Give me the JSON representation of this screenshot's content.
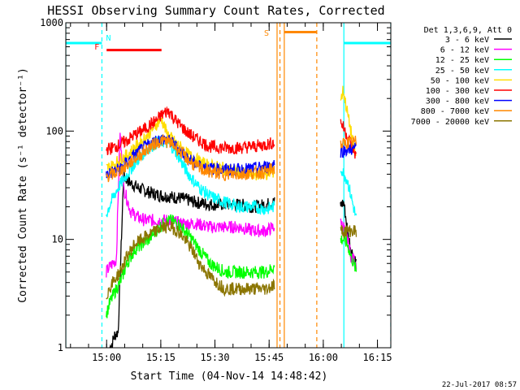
{
  "chart_data": {
    "type": "line",
    "title": "HESSI Observing Summary Count Rates, Corrected",
    "xlabel": "Start Time (04-Nov-14 14:48:42)",
    "ylabel": "Corrected Count Rate (s⁻¹ detector⁻¹)",
    "x_unit": "minutes after 14:48:42",
    "xlim": [
      0,
      90
    ],
    "ylim": [
      1,
      1000
    ],
    "y_scale": "log",
    "grid": false,
    "legend_position": "top-right",
    "legend_title": "Det 1,3,6,9, Att 0",
    "x_ticks": [
      {
        "value": 11.3,
        "label": "15:00"
      },
      {
        "value": 26.3,
        "label": "15:15"
      },
      {
        "value": 41.3,
        "label": "15:30"
      },
      {
        "value": 56.3,
        "label": "15:45"
      },
      {
        "value": 71.3,
        "label": "16:00"
      },
      {
        "value": 86.3,
        "label": "16:15"
      }
    ],
    "y_ticks": [
      {
        "value": 1,
        "label": "1"
      },
      {
        "value": 10,
        "label": "10"
      },
      {
        "value": 100,
        "label": "100"
      },
      {
        "value": 1000,
        "label": "1000"
      }
    ],
    "series": [
      {
        "name": "3 - 6 keV",
        "color": "#000000",
        "x": [
          12.2,
          12.8,
          13.5,
          14.5,
          16,
          18,
          20,
          22,
          25,
          28,
          32,
          36,
          40,
          44,
          48,
          52,
          55.5,
          57.5,
          76.3,
          77,
          78,
          79,
          80.5
        ],
        "y": [
          1,
          1.1,
          1.3,
          1.4,
          38,
          33,
          30,
          28,
          26,
          25,
          24,
          22,
          21,
          21,
          21,
          20,
          21,
          22,
          21,
          22,
          12,
          8,
          6
        ]
      },
      {
        "name": "6 - 12 keV",
        "color": "#ff00ff",
        "x": [
          11.2,
          12,
          13,
          14,
          15,
          16,
          18,
          20,
          22,
          25,
          28,
          32,
          36,
          40,
          44,
          48,
          52,
          55.5,
          57.5,
          76.3,
          77,
          78,
          79,
          80.5
        ],
        "y": [
          5,
          5.5,
          6,
          6.5,
          95,
          30,
          18,
          16,
          15,
          15,
          15,
          14,
          14,
          13,
          13,
          13,
          12,
          12,
          13,
          14,
          13,
          10,
          7,
          6
        ]
      },
      {
        "name": "12 - 25 keV",
        "color": "#00ff00",
        "x": [
          11.2,
          12,
          13,
          14,
          15,
          17,
          19,
          21,
          23,
          25,
          27,
          29,
          31,
          33,
          35,
          37,
          40,
          44,
          48,
          52,
          55.5,
          57.5,
          76.3,
          77,
          78,
          79,
          80.5
        ],
        "y": [
          2,
          2.5,
          3,
          3.5,
          4,
          6,
          8,
          9,
          10,
          12,
          14,
          15,
          14,
          12,
          10,
          8,
          6,
          5,
          5,
          5,
          5,
          5.5,
          10,
          10,
          9,
          7,
          5
        ]
      },
      {
        "name": "25 - 50 keV",
        "color": "#00ffff",
        "x": [
          11.2,
          12,
          13,
          14,
          15,
          17,
          19,
          21,
          23,
          25,
          27,
          29,
          31,
          33,
          35,
          37,
          40,
          44,
          48,
          52,
          55.5,
          57.5,
          76.3,
          77,
          78,
          79,
          80.5
        ],
        "y": [
          17,
          20,
          24,
          28,
          32,
          40,
          50,
          60,
          70,
          78,
          80,
          75,
          60,
          45,
          36,
          30,
          25,
          22,
          20,
          20,
          19,
          20,
          45,
          40,
          35,
          25,
          15
        ]
      },
      {
        "name": "50 - 100 keV",
        "color": "#ffdd00",
        "x": [
          11.2,
          13,
          15,
          17,
          19,
          21,
          23,
          25,
          26.5,
          28,
          30,
          32,
          34,
          36,
          38,
          40,
          44,
          48,
          52,
          55.5,
          57.5,
          76.3,
          76.8,
          77.5,
          78.5,
          79.5,
          80.5
        ],
        "y": [
          45,
          48,
          55,
          60,
          70,
          80,
          95,
          115,
          130,
          95,
          80,
          70,
          60,
          55,
          50,
          48,
          45,
          42,
          40,
          40,
          42,
          200,
          240,
          180,
          120,
          80,
          55
        ]
      },
      {
        "name": "100 - 300 keV",
        "color": "#ff0000",
        "x": [
          11.2,
          13,
          15,
          17,
          19,
          21,
          23,
          25,
          27,
          28.5,
          30,
          32,
          34,
          36,
          38,
          40,
          44,
          48,
          52,
          55.5,
          57.5,
          76.3,
          77,
          78,
          79,
          80.5
        ],
        "y": [
          68,
          70,
          75,
          82,
          92,
          100,
          112,
          125,
          145,
          155,
          130,
          110,
          95,
          85,
          78,
          72,
          70,
          70,
          72,
          75,
          78,
          120,
          105,
          90,
          75,
          58
        ]
      },
      {
        "name": "300 - 800 keV",
        "color": "#0000ff",
        "x": [
          11.2,
          13,
          15,
          17,
          19,
          21,
          23,
          25,
          27,
          29,
          31,
          33,
          35,
          37,
          40,
          44,
          48,
          52,
          55.5,
          57.5,
          76.3,
          77,
          78,
          79,
          80.5
        ],
        "y": [
          40,
          42,
          45,
          52,
          60,
          68,
          75,
          82,
          85,
          80,
          70,
          60,
          52,
          48,
          45,
          44,
          44,
          45,
          47,
          50,
          65,
          66,
          68,
          68,
          70
        ]
      },
      {
        "name": "800 - 7000 keV",
        "color": "#ff8800",
        "x": [
          11.2,
          13,
          15,
          17,
          19,
          21,
          23,
          25,
          27,
          29,
          31,
          33,
          35,
          37,
          40,
          44,
          48,
          52,
          55.5,
          57.5,
          76.3,
          77,
          78,
          79,
          80.5
        ],
        "y": [
          38,
          40,
          43,
          48,
          55,
          62,
          70,
          78,
          82,
          78,
          68,
          58,
          50,
          45,
          42,
          40,
          40,
          41,
          42,
          45,
          75,
          76,
          78,
          78,
          80
        ]
      },
      {
        "name": "7000 - 20000 keV",
        "color": "#8b7500",
        "x": [
          11.2,
          12,
          13,
          14,
          15,
          17,
          19,
          21,
          23,
          25,
          27,
          29,
          31,
          33,
          35,
          37,
          40,
          44,
          48,
          52,
          55.5,
          57.5,
          76.3,
          77,
          78,
          79,
          80.5
        ],
        "y": [
          3,
          3.5,
          4,
          4.5,
          5,
          7,
          9,
          10,
          11,
          12,
          13,
          13,
          12,
          10,
          8,
          6,
          4.5,
          3.5,
          3.5,
          3.5,
          3.5,
          3.8,
          12,
          12,
          12,
          12,
          12
        ]
      }
    ],
    "annotations": [
      {
        "label": "N",
        "x": 10.0,
        "color": "#00ffff"
      },
      {
        "label": "F",
        "x": 11.3,
        "color": "#ff0000"
      },
      {
        "label": "S",
        "x": 58.5,
        "color": "#ff8800"
      }
    ],
    "flag_bars": [
      {
        "kind": "night",
        "color": "#00ffff",
        "segments": [
          [
            0,
            10
          ],
          [
            77,
            90
          ]
        ],
        "y": 650
      },
      {
        "kind": "flare",
        "color": "#ff0000",
        "segments": [
          [
            11.3,
            26.5
          ]
        ],
        "y": 560
      },
      {
        "kind": "saa",
        "color": "#ff8800",
        "segments": [
          [
            60.5,
            69.5
          ]
        ],
        "y": 820
      }
    ],
    "markers": [
      {
        "x": 0,
        "color": "#00ffff",
        "style": "solid"
      },
      {
        "x": 10.0,
        "color": "#00ffff",
        "style": "dashed"
      },
      {
        "x": 58.5,
        "color": "#ff8800",
        "style": "solid"
      },
      {
        "x": 59.3,
        "color": "#ff8800",
        "style": "dashed"
      },
      {
        "x": 60.5,
        "color": "#ff8800",
        "style": "solid"
      },
      {
        "x": 69.5,
        "color": "#ff8800",
        "style": "dashed"
      },
      {
        "x": 77.0,
        "color": "#00ffff",
        "style": "solid"
      },
      {
        "x": 90.0,
        "color": "#00ffff",
        "style": "dashed"
      }
    ],
    "gaps": [
      [
        57.8,
        76.0
      ]
    ]
  },
  "footer": {
    "timestamp": "22-Jul-2017 08:57"
  }
}
